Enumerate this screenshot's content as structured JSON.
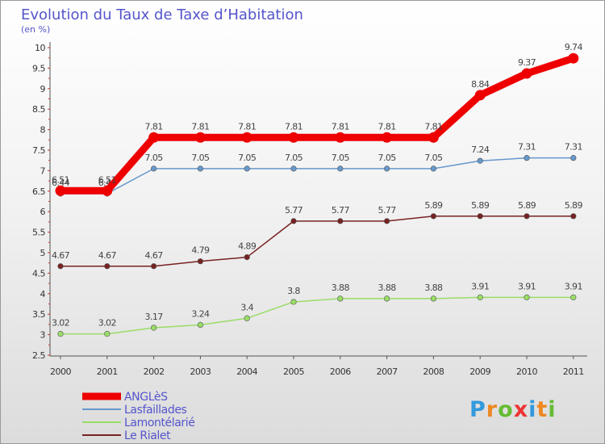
{
  "chart_data": {
    "type": "line",
    "title": "Evolution du Taux de Taxe d’Habitation",
    "subtitle": "(en %)",
    "x": [
      "2000",
      "2001",
      "2002",
      "2003",
      "2004",
      "2005",
      "2006",
      "2007",
      "2008",
      "2009",
      "2010",
      "2011"
    ],
    "ylim": [
      2.5,
      10
    ],
    "yticks": [
      "2.5",
      "3",
      "3.5",
      "4",
      "4.5",
      "5",
      "5.5",
      "6",
      "6.5",
      "7",
      "7.5",
      "8",
      "8.5",
      "9",
      "9.5",
      "10"
    ],
    "grid": false,
    "legend_position": "bottom-left",
    "series": [
      {
        "name": "ANGLèS",
        "color": "#ee0000",
        "values": [
          6.51,
          6.51,
          7.81,
          7.81,
          7.81,
          7.81,
          7.81,
          7.81,
          7.81,
          8.84,
          9.37,
          9.74
        ],
        "labels": [
          "6.51",
          "6.51",
          "7.81",
          "7.81",
          "7.81",
          "7.81",
          "7.81",
          "7.81",
          "7.81",
          "8.84",
          "9.37",
          "9.74"
        ]
      },
      {
        "name": "Lasfaillades",
        "color": "#6699cc",
        "values": [
          6.44,
          6.44,
          7.05,
          7.05,
          7.05,
          7.05,
          7.05,
          7.05,
          7.05,
          7.24,
          7.31,
          7.31
        ],
        "labels": [
          "6.44",
          "6.44",
          "7.05",
          "7.05",
          "7.05",
          "7.05",
          "7.05",
          "7.05",
          "7.05",
          "7.24",
          "7.31",
          "7.31"
        ]
      },
      {
        "name": "Lamontélarié",
        "color": "#99dd66",
        "values": [
          3.02,
          3.02,
          3.17,
          3.24,
          3.4,
          3.8,
          3.88,
          3.88,
          3.88,
          3.91,
          3.91,
          3.91
        ],
        "labels": [
          "3.02",
          "3.02",
          "3.17",
          "3.24",
          "3.4",
          "3.8",
          "3.88",
          "3.88",
          "3.88",
          "3.91",
          "3.91",
          "3.91"
        ]
      },
      {
        "name": "Le Rialet",
        "color": "#772222",
        "values": [
          4.67,
          4.67,
          4.67,
          4.79,
          4.89,
          5.77,
          5.77,
          5.77,
          5.89,
          5.89,
          5.89,
          5.89
        ],
        "labels": [
          "4.67",
          "4.67",
          "4.67",
          "4.79",
          "4.89",
          "5.77",
          "5.77",
          "5.77",
          "5.89",
          "5.89",
          "5.89",
          "5.89"
        ]
      }
    ]
  },
  "logo": {
    "letters": [
      "P",
      "r",
      "o",
      "x",
      "i",
      "t",
      "i"
    ],
    "colors": [
      "#3399dd",
      "#ee8822",
      "#66bb33",
      "#ee3333",
      "#3399dd",
      "#ee8822",
      "#66bb33"
    ]
  }
}
